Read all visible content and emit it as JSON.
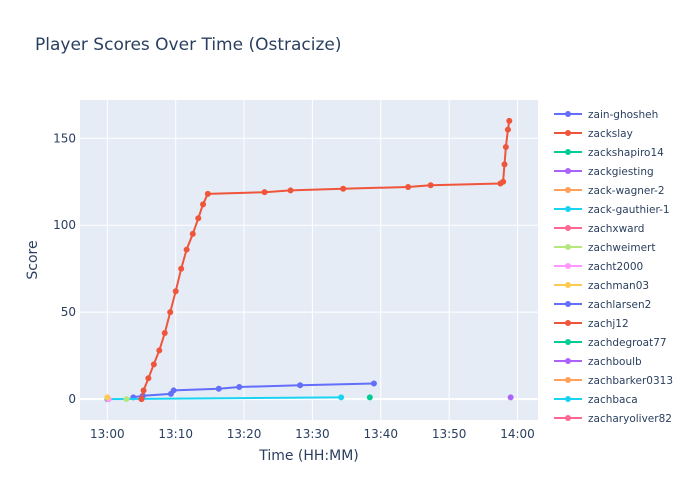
{
  "chart_data": {
    "type": "line",
    "title": "Player Scores Over Time (Ostracize)",
    "xlabel": "Time (HH:MM)",
    "ylabel": "Score",
    "x_domain_minutes": [
      -4,
      63
    ],
    "ylim": [
      -12,
      172
    ],
    "x_ticks": [
      {
        "label": "13:00",
        "minutes": 0
      },
      {
        "label": "13:10",
        "minutes": 10
      },
      {
        "label": "13:20",
        "minutes": 20
      },
      {
        "label": "13:30",
        "minutes": 30
      },
      {
        "label": "13:40",
        "minutes": 40
      },
      {
        "label": "13:50",
        "minutes": 50
      },
      {
        "label": "14:00",
        "minutes": 60
      }
    ],
    "y_ticks": [
      0,
      50,
      100,
      150
    ],
    "grid": true,
    "legend_position": "right",
    "series": [
      {
        "name": "zain-ghosheh",
        "color": "#636efa",
        "points": [
          [
            3.8,
            1
          ],
          [
            5.2,
            2
          ],
          [
            9.3,
            3
          ],
          [
            9.7,
            5
          ],
          [
            16.3,
            6
          ],
          [
            19.3,
            7
          ],
          [
            28.2,
            8
          ],
          [
            39.0,
            9
          ]
        ]
      },
      {
        "name": "zackslay",
        "color": "#ef553b",
        "points": [
          [
            5.0,
            0
          ],
          [
            5.3,
            5
          ],
          [
            6.0,
            12
          ],
          [
            6.8,
            20
          ],
          [
            7.6,
            28
          ],
          [
            8.4,
            38
          ],
          [
            9.2,
            50
          ],
          [
            10.0,
            62
          ],
          [
            10.8,
            75
          ],
          [
            11.6,
            86
          ],
          [
            12.5,
            95
          ],
          [
            13.3,
            104
          ],
          [
            14.0,
            112
          ],
          [
            14.7,
            118
          ],
          [
            23.0,
            119
          ],
          [
            26.8,
            120
          ],
          [
            34.5,
            121
          ],
          [
            44.0,
            122
          ],
          [
            47.3,
            123
          ],
          [
            57.5,
            124
          ],
          [
            57.9,
            125
          ],
          [
            58.1,
            135
          ],
          [
            58.3,
            145
          ],
          [
            58.6,
            155
          ],
          [
            58.8,
            160
          ]
        ]
      },
      {
        "name": "zackshapiro14",
        "color": "#00cc96",
        "points": [
          [
            38.4,
            1
          ]
        ]
      },
      {
        "name": "zackgiesting",
        "color": "#ab63fa",
        "points": [
          [
            59.0,
            1
          ]
        ]
      },
      {
        "name": "zack-wagner-2",
        "color": "#ffa15a",
        "points": [
          [
            0.0,
            0
          ]
        ]
      },
      {
        "name": "zack-gauthier-1",
        "color": "#19d3f3",
        "points": [
          [
            0.0,
            0
          ],
          [
            34.2,
            1
          ]
        ]
      },
      {
        "name": "zachxward",
        "color": "#ff6692",
        "points": [
          [
            0.1,
            0
          ]
        ]
      },
      {
        "name": "zachweimert",
        "color": "#b6e880",
        "points": [
          [
            2.8,
            0
          ]
        ]
      },
      {
        "name": "zacht2000",
        "color": "#ff97ff",
        "points": [
          [
            0.2,
            0
          ]
        ]
      },
      {
        "name": "zachman03",
        "color": "#fecb52",
        "points": [
          [
            0.0,
            1
          ]
        ]
      },
      {
        "name": "zachlarsen2",
        "color": "#636efa",
        "points": []
      },
      {
        "name": "zachj12",
        "color": "#ef553b",
        "points": []
      },
      {
        "name": "zachdegroat77",
        "color": "#00cc96",
        "points": []
      },
      {
        "name": "zachboulb",
        "color": "#ab63fa",
        "points": []
      },
      {
        "name": "zachbarker0313",
        "color": "#ffa15a",
        "points": []
      },
      {
        "name": "zachbaca",
        "color": "#19d3f3",
        "points": []
      },
      {
        "name": "zacharyoliver82",
        "color": "#ff6692",
        "points": []
      }
    ]
  }
}
